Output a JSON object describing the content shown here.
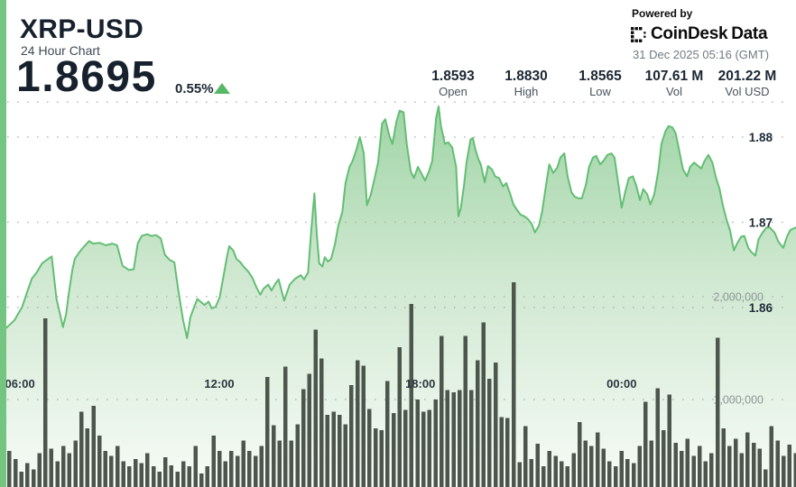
{
  "header": {
    "symbol": "XRP-USD",
    "subtitle": "24 Hour Chart",
    "price": "1.8695",
    "change_percent": "0.55%",
    "change_direction": "up"
  },
  "brand": {
    "powered_by": "Powered by",
    "name_primary": "CoinDesk",
    "name_secondary": "Data",
    "timestamp": "31 Dec 2025 05:16 (GMT)"
  },
  "stats": {
    "items": [
      {
        "value": "1.8593",
        "label": "Open"
      },
      {
        "value": "1.8830",
        "label": "High"
      },
      {
        "value": "1.8565",
        "label": "Low"
      },
      {
        "value": "107.61 M",
        "label": "Vol"
      },
      {
        "value": "201.22 M",
        "label": "Vol USD"
      }
    ]
  },
  "chart_data": {
    "type": "area",
    "title": "XRP-USD 24 Hour Chart",
    "time_span_hours": 24,
    "x_axis": {
      "ticks": [
        {
          "label": "06:00",
          "pos": 0.025
        },
        {
          "label": "12:00",
          "pos": 0.2755
        },
        {
          "label": "18:00",
          "pos": 0.528
        },
        {
          "label": "00:00",
          "pos": 0.781
        }
      ]
    },
    "price_axis": {
      "side": "right",
      "ticks": [
        {
          "label": "",
          "value": 1.8841
        },
        {
          "label": "1.88",
          "value": 1.88
        },
        {
          "label": "1.87",
          "value": 1.87
        },
        {
          "label": "1.86",
          "value": 1.86
        }
      ]
    },
    "volume_axis": {
      "side": "right",
      "ticks": [
        {
          "label": "2,000,000",
          "value": 2000000
        },
        {
          "label": "1,000,000",
          "value": 1000000
        }
      ]
    },
    "price_series": {
      "name": "XRP-USD price",
      "points_format": [
        "fraction_of_24h",
        "price_usd"
      ],
      "points": [
        [
          0.0,
          1.857
        ],
        [
          0.009,
          1.8577
        ],
        [
          0.018,
          1.8585
        ],
        [
          0.028,
          1.8601
        ],
        [
          0.034,
          1.8618
        ],
        [
          0.04,
          1.8634
        ],
        [
          0.046,
          1.8641
        ],
        [
          0.053,
          1.8652
        ],
        [
          0.059,
          1.8656
        ],
        [
          0.065,
          1.866
        ],
        [
          0.071,
          1.861
        ],
        [
          0.076,
          1.859
        ],
        [
          0.079,
          1.8577
        ],
        [
          0.083,
          1.8592
        ],
        [
          0.087,
          1.862
        ],
        [
          0.091,
          1.8645
        ],
        [
          0.094,
          1.8657
        ],
        [
          0.099,
          1.8664
        ],
        [
          0.105,
          1.8671
        ],
        [
          0.112,
          1.8678
        ],
        [
          0.117,
          1.8675
        ],
        [
          0.125,
          1.8676
        ],
        [
          0.133,
          1.8673
        ],
        [
          0.141,
          1.8675
        ],
        [
          0.147,
          1.8673
        ],
        [
          0.154,
          1.8649
        ],
        [
          0.162,
          1.8644
        ],
        [
          0.168,
          1.8645
        ],
        [
          0.173,
          1.8675
        ],
        [
          0.178,
          1.8684
        ],
        [
          0.185,
          1.8686
        ],
        [
          0.19,
          1.8684
        ],
        [
          0.196,
          1.8685
        ],
        [
          0.202,
          1.8681
        ],
        [
          0.207,
          1.8662
        ],
        [
          0.213,
          1.8656
        ],
        [
          0.219,
          1.8653
        ],
        [
          0.224,
          1.862
        ],
        [
          0.23,
          1.8585
        ],
        [
          0.235,
          1.8564
        ],
        [
          0.239,
          1.8588
        ],
        [
          0.244,
          1.8601
        ],
        [
          0.248,
          1.861
        ],
        [
          0.253,
          1.8606
        ],
        [
          0.257,
          1.8603
        ],
        [
          0.262,
          1.8607
        ],
        [
          0.266,
          1.8599
        ],
        [
          0.271,
          1.8601
        ],
        [
          0.276,
          1.8612
        ],
        [
          0.28,
          1.8633
        ],
        [
          0.285,
          1.8659
        ],
        [
          0.288,
          1.8672
        ],
        [
          0.293,
          1.8667
        ],
        [
          0.297,
          1.8657
        ],
        [
          0.302,
          1.8653
        ],
        [
          0.306,
          1.8648
        ],
        [
          0.312,
          1.8642
        ],
        [
          0.317,
          1.8635
        ],
        [
          0.322,
          1.8624
        ],
        [
          0.327,
          1.8615
        ],
        [
          0.331,
          1.8622
        ],
        [
          0.337,
          1.8627
        ],
        [
          0.341,
          1.862
        ],
        [
          0.346,
          1.8628
        ],
        [
          0.35,
          1.8633
        ],
        [
          0.357,
          1.8608
        ],
        [
          0.364,
          1.8627
        ],
        [
          0.371,
          1.8634
        ],
        [
          0.378,
          1.8638
        ],
        [
          0.382,
          1.8633
        ],
        [
          0.387,
          1.8641
        ],
        [
          0.391,
          1.8691
        ],
        [
          0.395,
          1.8734
        ],
        [
          0.398,
          1.8686
        ],
        [
          0.401,
          1.8652
        ],
        [
          0.405,
          1.8648
        ],
        [
          0.408,
          1.8659
        ],
        [
          0.412,
          1.8654
        ],
        [
          0.416,
          1.8657
        ],
        [
          0.421,
          1.8675
        ],
        [
          0.425,
          1.8696
        ],
        [
          0.43,
          1.8712
        ],
        [
          0.434,
          1.8746
        ],
        [
          0.439,
          1.8765
        ],
        [
          0.443,
          1.8772
        ],
        [
          0.448,
          1.8786
        ],
        [
          0.452,
          1.88
        ],
        [
          0.457,
          1.8781
        ],
        [
          0.461,
          1.872
        ],
        [
          0.466,
          1.8733
        ],
        [
          0.47,
          1.8749
        ],
        [
          0.475,
          1.877
        ],
        [
          0.48,
          1.8816
        ],
        [
          0.484,
          1.8821
        ],
        [
          0.489,
          1.8802
        ],
        [
          0.493,
          1.8792
        ],
        [
          0.498,
          1.8818
        ],
        [
          0.502,
          1.8831
        ],
        [
          0.507,
          1.8829
        ],
        [
          0.511,
          1.8792
        ],
        [
          0.516,
          1.876
        ],
        [
          0.52,
          1.8752
        ],
        [
          0.525,
          1.8765
        ],
        [
          0.529,
          1.8758
        ],
        [
          0.534,
          1.8749
        ],
        [
          0.539,
          1.876
        ],
        [
          0.543,
          1.8772
        ],
        [
          0.548,
          1.8823
        ],
        [
          0.551,
          1.8836
        ],
        [
          0.554,
          1.8813
        ],
        [
          0.559,
          1.8792
        ],
        [
          0.563,
          1.8794
        ],
        [
          0.568,
          1.8788
        ],
        [
          0.573,
          1.8765
        ],
        [
          0.576,
          1.8707
        ],
        [
          0.579,
          1.8717
        ],
        [
          0.583,
          1.8744
        ],
        [
          0.586,
          1.877
        ],
        [
          0.591,
          1.8797
        ],
        [
          0.594,
          1.8799
        ],
        [
          0.597,
          1.8786
        ],
        [
          0.601,
          1.8774
        ],
        [
          0.604,
          1.8768
        ],
        [
          0.609,
          1.8747
        ],
        [
          0.613,
          1.8766
        ],
        [
          0.618,
          1.8762
        ],
        [
          0.622,
          1.8754
        ],
        [
          0.627,
          1.8752
        ],
        [
          0.632,
          1.8742
        ],
        [
          0.636,
          1.8746
        ],
        [
          0.641,
          1.8733
        ],
        [
          0.645,
          1.8721
        ],
        [
          0.65,
          1.8714
        ],
        [
          0.654,
          1.8709
        ],
        [
          0.659,
          1.8707
        ],
        [
          0.663,
          1.8704
        ],
        [
          0.668,
          1.8698
        ],
        [
          0.672,
          1.8688
        ],
        [
          0.677,
          1.8696
        ],
        [
          0.681,
          1.8712
        ],
        [
          0.686,
          1.8744
        ],
        [
          0.69,
          1.8768
        ],
        [
          0.695,
          1.8758
        ],
        [
          0.7,
          1.8764
        ],
        [
          0.704,
          1.8776
        ],
        [
          0.709,
          1.8781
        ],
        [
          0.713,
          1.8754
        ],
        [
          0.718,
          1.8735
        ],
        [
          0.722,
          1.873
        ],
        [
          0.727,
          1.8728
        ],
        [
          0.731,
          1.8728
        ],
        [
          0.736,
          1.8744
        ],
        [
          0.74,
          1.8765
        ],
        [
          0.745,
          1.8776
        ],
        [
          0.749,
          1.8778
        ],
        [
          0.754,
          1.8768
        ],
        [
          0.758,
          1.8772
        ],
        [
          0.763,
          1.8779
        ],
        [
          0.768,
          1.8781
        ],
        [
          0.772,
          1.8776
        ],
        [
          0.777,
          1.8744
        ],
        [
          0.781,
          1.8717
        ],
        [
          0.786,
          1.8738
        ],
        [
          0.79,
          1.8752
        ],
        [
          0.795,
          1.8754
        ],
        [
          0.799,
          1.8744
        ],
        [
          0.804,
          1.8726
        ],
        [
          0.808,
          1.8739
        ],
        [
          0.813,
          1.8733
        ],
        [
          0.817,
          1.8721
        ],
        [
          0.822,
          1.8733
        ],
        [
          0.827,
          1.876
        ],
        [
          0.831,
          1.8792
        ],
        [
          0.836,
          1.8807
        ],
        [
          0.84,
          1.8813
        ],
        [
          0.845,
          1.8811
        ],
        [
          0.849,
          1.8804
        ],
        [
          0.854,
          1.8781
        ],
        [
          0.858,
          1.8762
        ],
        [
          0.863,
          1.8754
        ],
        [
          0.867,
          1.8765
        ],
        [
          0.872,
          1.877
        ],
        [
          0.876,
          1.8767
        ],
        [
          0.881,
          1.8763
        ],
        [
          0.885,
          1.8772
        ],
        [
          0.89,
          1.8779
        ],
        [
          0.895,
          1.877
        ],
        [
          0.899,
          1.8754
        ],
        [
          0.904,
          1.8739
        ],
        [
          0.908,
          1.872
        ],
        [
          0.913,
          1.8702
        ],
        [
          0.917,
          1.8691
        ],
        [
          0.922,
          1.8667
        ],
        [
          0.926,
          1.8675
        ],
        [
          0.931,
          1.8683
        ],
        [
          0.935,
          1.8684
        ],
        [
          0.94,
          1.867
        ],
        [
          0.944,
          1.8665
        ],
        [
          0.949,
          1.8661
        ],
        [
          0.953,
          1.868
        ],
        [
          0.958,
          1.8688
        ],
        [
          0.963,
          1.8694
        ],
        [
          0.967,
          1.8694
        ],
        [
          0.973,
          1.8688
        ],
        [
          0.978,
          1.8677
        ],
        [
          0.984,
          1.867
        ],
        [
          0.989,
          1.8684
        ],
        [
          0.993,
          1.8691
        ],
        [
          1.0,
          1.8694
        ]
      ]
    },
    "volume_series": {
      "name": "Volume",
      "unit": "millions",
      "values_millions": [
        0.45,
        0.5,
        0.42,
        0.3,
        0.38,
        0.32,
        0.48,
        1.79,
        0.52,
        0.4,
        0.55,
        0.48,
        0.6,
        0.88,
        0.72,
        0.94,
        0.65,
        0.5,
        0.45,
        0.55,
        0.4,
        0.35,
        0.42,
        0.38,
        0.48,
        0.35,
        0.3,
        0.44,
        0.36,
        0.3,
        0.4,
        0.35,
        0.55,
        0.28,
        0.35,
        0.65,
        0.5,
        0.4,
        0.5,
        0.45,
        0.6,
        0.5,
        0.45,
        0.55,
        1.22,
        0.75,
        0.6,
        1.32,
        0.6,
        0.76,
        1.1,
        1.25,
        1.68,
        1.4,
        0.85,
        0.88,
        0.85,
        0.76,
        1.14,
        1.38,
        1.33,
        0.91,
        0.72,
        0.7,
        1.18,
        0.87,
        1.51,
        0.9,
        1.93,
        1.0,
        0.88,
        0.9,
        1.0,
        1.62,
        1.09,
        1.07,
        1.09,
        1.62,
        1.09,
        1.38,
        1.75,
        1.2,
        1.36,
        0.83,
        0.82,
        2.14,
        0.39,
        0.74,
        0.42,
        0.57,
        0.35,
        0.5,
        0.45,
        0.4,
        0.35,
        0.48,
        0.78,
        0.6,
        0.55,
        0.68,
        0.52,
        0.4,
        0.35,
        0.5,
        0.42,
        0.38,
        0.55,
        0.98,
        0.6,
        1.11,
        0.7,
        1.05,
        0.58,
        0.5,
        0.62,
        0.45,
        0.55,
        0.4,
        0.48,
        1.6,
        0.72,
        0.55,
        0.62,
        0.48,
        0.68,
        0.58,
        0.52,
        0.32,
        0.74,
        0.6,
        0.45,
        0.56,
        0.48
      ]
    },
    "colors": {
      "line": "#63be74",
      "area_top": "#9ed4a5",
      "area_mid": "#cfe8d0",
      "area_bottom": "#f7fbf7",
      "bars": "#4d564c",
      "grid_dots": "#a9b1ae",
      "accent_stripe": "#74c581",
      "up_triangle": "#58b766"
    },
    "grid": "dotted-horizontal"
  }
}
